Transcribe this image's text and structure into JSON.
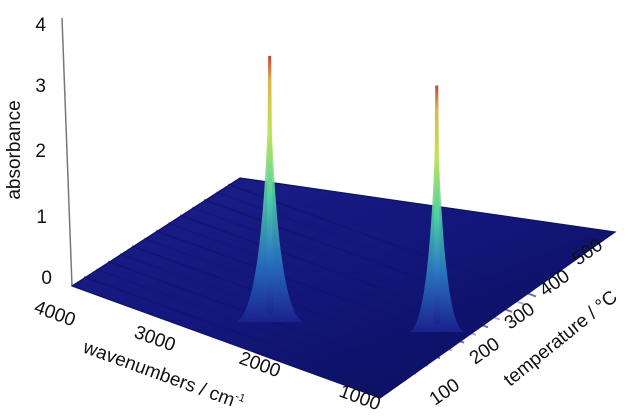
{
  "chart_data": {
    "type": "surface",
    "title": "",
    "xlabel": "wavenumbers / cm",
    "xlabel_superscript": "-1",
    "ylabel": "absorbance",
    "zlabel": "temperature / °C",
    "x_ticks": [
      "4000",
      "3000",
      "2000",
      "1000"
    ],
    "y_ticks": [
      "0",
      "1",
      "2",
      "3",
      "4"
    ],
    "z_ticks": [
      "100",
      "200",
      "300",
      "400",
      "500"
    ],
    "xlim": [
      4000,
      700
    ],
    "ylim": [
      0,
      4
    ],
    "zlim": [
      50,
      550
    ],
    "grid": false,
    "peaks": [
      {
        "wavenumber": 2350,
        "temperature": 180,
        "absorbance": 4.0
      },
      {
        "wavenumber": 1100,
        "temperature": 330,
        "absorbance": 3.7
      }
    ],
    "colorscale": [
      "#1a1f8f",
      "#2c9bd1",
      "#4ad0a4",
      "#c9e85b",
      "#c84535"
    ]
  }
}
